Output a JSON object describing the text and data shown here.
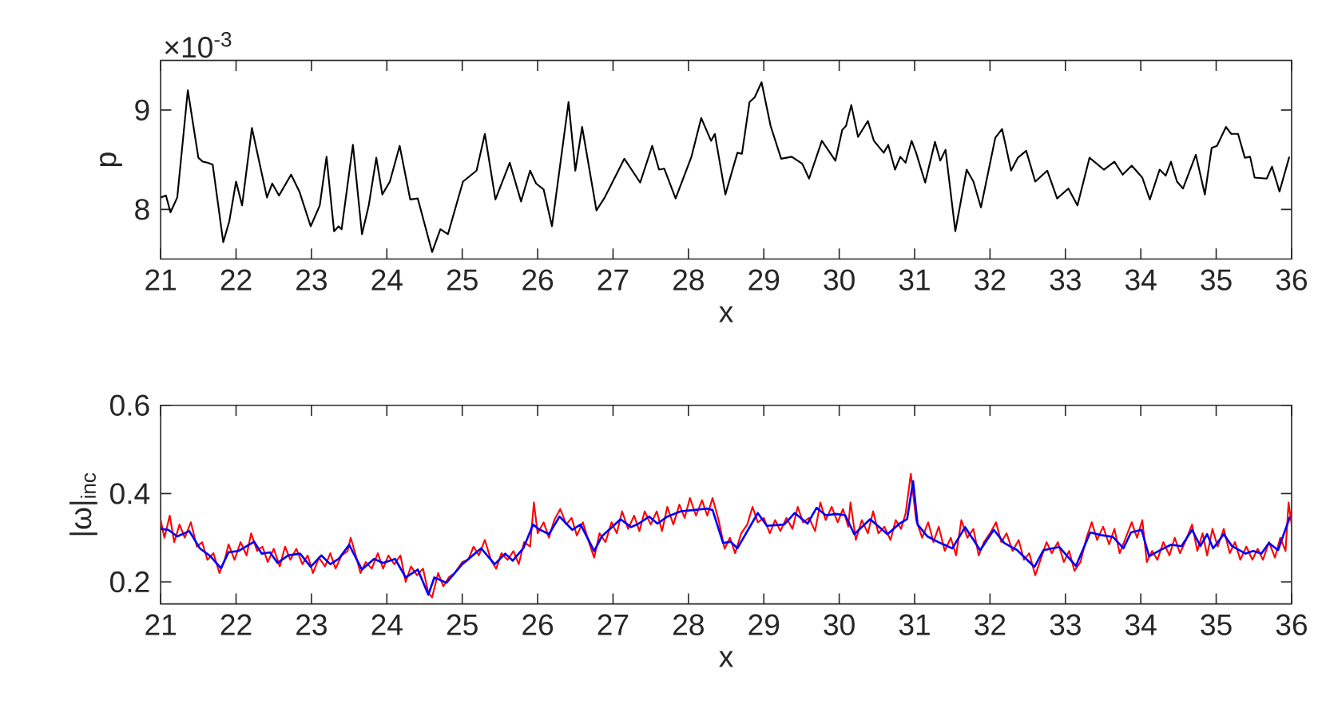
{
  "chart_data": [
    {
      "type": "line",
      "xlabel": "x",
      "ylabel": "p",
      "annotations": [
        "×10$^{-3}$"
      ],
      "xlim": [
        21,
        36
      ],
      "xticks": [
        21,
        22,
        23,
        24,
        25,
        26,
        27,
        28,
        29,
        30,
        31,
        32,
        33,
        34,
        35,
        36
      ],
      "ylim": [
        7.5,
        9.5
      ],
      "yticks": [
        8,
        9
      ],
      "series": [
        {
          "color": "#000000",
          "x": [
            21.0,
            21.07,
            21.13,
            21.22,
            21.36,
            21.5,
            21.56,
            21.62,
            21.69,
            21.83,
            21.91,
            22.0,
            22.08,
            22.21,
            22.41,
            22.48,
            22.57,
            22.73,
            22.84,
            22.99,
            23.11,
            23.2,
            23.3,
            23.36,
            23.4,
            23.55,
            23.67,
            23.76,
            23.86,
            23.94,
            24.04,
            24.17,
            24.31,
            24.41,
            24.6,
            24.71,
            24.81,
            25.01,
            25.19,
            25.3,
            25.44,
            25.63,
            25.78,
            25.9,
            25.98,
            26.08,
            26.19,
            26.41,
            26.5,
            26.59,
            26.78,
            26.89,
            27.15,
            27.36,
            27.52,
            27.61,
            27.68,
            27.83,
            28.04,
            28.17,
            28.3,
            28.35,
            28.49,
            28.65,
            28.71,
            28.81,
            28.88,
            28.97,
            29.09,
            29.23,
            29.37,
            29.51,
            29.6,
            29.77,
            29.95,
            30.04,
            30.09,
            30.16,
            30.25,
            30.38,
            30.46,
            30.59,
            30.65,
            30.74,
            30.81,
            30.88,
            30.96,
            31.02,
            31.14,
            31.27,
            31.34,
            31.41,
            31.54,
            31.69,
            31.78,
            31.88,
            32.07,
            32.16,
            32.28,
            32.37,
            32.48,
            32.6,
            32.76,
            32.89,
            33.04,
            33.16,
            33.32,
            33.51,
            33.65,
            33.76,
            33.88,
            34.02,
            34.12,
            34.25,
            34.33,
            34.4,
            34.48,
            34.56,
            34.73,
            34.85,
            34.94,
            35.01,
            35.13,
            35.2,
            35.29,
            35.38,
            35.45,
            35.51,
            35.67,
            35.74,
            35.84,
            35.97
          ],
          "values": [
            8.12,
            8.14,
            7.97,
            8.12,
            9.2,
            8.52,
            8.48,
            8.47,
            8.45,
            7.67,
            7.88,
            8.28,
            8.04,
            8.82,
            8.12,
            8.26,
            8.14,
            8.35,
            8.18,
            7.83,
            8.04,
            8.53,
            7.78,
            7.83,
            7.8,
            8.65,
            7.75,
            8.04,
            8.52,
            8.15,
            8.28,
            8.64,
            8.1,
            8.11,
            7.57,
            7.8,
            7.75,
            8.28,
            8.39,
            8.76,
            8.1,
            8.47,
            8.08,
            8.39,
            8.26,
            8.2,
            7.83,
            9.08,
            8.39,
            8.83,
            7.99,
            8.12,
            8.51,
            8.27,
            8.64,
            8.4,
            8.41,
            8.11,
            8.53,
            8.92,
            8.69,
            8.76,
            8.15,
            8.57,
            8.56,
            9.08,
            9.13,
            9.28,
            8.84,
            8.51,
            8.53,
            8.46,
            8.31,
            8.69,
            8.49,
            8.8,
            8.84,
            9.05,
            8.73,
            8.89,
            8.69,
            8.57,
            8.65,
            8.4,
            8.53,
            8.47,
            8.69,
            8.57,
            8.27,
            8.68,
            8.49,
            8.6,
            7.78,
            8.4,
            8.28,
            8.02,
            8.72,
            8.81,
            8.39,
            8.52,
            8.59,
            8.28,
            8.39,
            8.11,
            8.21,
            8.04,
            8.52,
            8.4,
            8.48,
            8.35,
            8.44,
            8.32,
            8.1,
            8.4,
            8.34,
            8.48,
            8.28,
            8.21,
            8.55,
            8.15,
            8.62,
            8.64,
            8.83,
            8.76,
            8.76,
            8.52,
            8.53,
            8.32,
            8.31,
            8.43,
            8.18,
            8.53
          ]
        }
      ]
    },
    {
      "type": "line",
      "xlabel": "x",
      "ylabel": "|ω|$_{inc}$",
      "xlim": [
        21,
        36
      ],
      "xticks": [
        21,
        22,
        23,
        24,
        25,
        26,
        27,
        28,
        29,
        30,
        31,
        32,
        33,
        34,
        35,
        36
      ],
      "ylim": [
        0.15,
        0.6
      ],
      "yticks": [
        0.2,
        0.4,
        0.6
      ],
      "series": [
        {
          "color": "#ff0000",
          "x": [
            21.0,
            21.05,
            21.12,
            21.18,
            21.25,
            21.32,
            21.4,
            21.48,
            21.55,
            21.62,
            21.7,
            21.78,
            21.85,
            21.9,
            21.98,
            22.06,
            22.14,
            22.2,
            22.28,
            22.35,
            22.42,
            22.5,
            22.58,
            22.65,
            22.72,
            22.8,
            22.88,
            22.95,
            23.02,
            23.1,
            23.18,
            23.25,
            23.32,
            23.4,
            23.48,
            23.52,
            23.58,
            23.65,
            23.72,
            23.8,
            23.88,
            23.95,
            24.02,
            24.1,
            24.18,
            24.25,
            24.32,
            24.4,
            24.48,
            24.55,
            24.6,
            24.68,
            24.75,
            24.82,
            24.9,
            25.0,
            25.08,
            25.15,
            25.22,
            25.3,
            25.38,
            25.45,
            25.52,
            25.6,
            25.68,
            25.75,
            25.82,
            25.9,
            25.95,
            26.0,
            26.08,
            26.15,
            26.22,
            26.3,
            26.38,
            26.45,
            26.52,
            26.6,
            26.68,
            26.75,
            26.82,
            26.9,
            26.98,
            27.05,
            27.12,
            27.2,
            27.28,
            27.35,
            27.42,
            27.5,
            27.58,
            27.65,
            27.72,
            27.8,
            27.88,
            27.95,
            28.02,
            28.1,
            28.18,
            28.25,
            28.32,
            28.4,
            28.48,
            28.55,
            28.62,
            28.7,
            28.78,
            28.85,
            28.92,
            29.0,
            29.08,
            29.15,
            29.22,
            29.3,
            29.38,
            29.45,
            29.52,
            29.6,
            29.68,
            29.75,
            29.82,
            29.9,
            29.98,
            30.05,
            30.12,
            30.15,
            30.22,
            30.3,
            30.38,
            30.45,
            30.52,
            30.6,
            30.68,
            30.75,
            30.82,
            30.88,
            30.95,
            31.02,
            31.1,
            31.18,
            31.25,
            31.32,
            31.4,
            31.48,
            31.55,
            31.62,
            31.7,
            31.78,
            31.85,
            31.92,
            32.0,
            32.08,
            32.15,
            32.22,
            32.3,
            32.38,
            32.45,
            32.52,
            32.6,
            32.68,
            32.75,
            32.82,
            32.9,
            32.98,
            33.05,
            33.12,
            33.2,
            33.28,
            33.35,
            33.42,
            33.5,
            33.58,
            33.65,
            33.72,
            33.8,
            33.88,
            33.95,
            34.02,
            34.08,
            34.15,
            34.22,
            34.3,
            34.38,
            34.45,
            34.52,
            34.6,
            34.68,
            34.75,
            34.82,
            34.88,
            34.95,
            35.02,
            35.1,
            35.18,
            35.25,
            35.32,
            35.4,
            35.48,
            35.55,
            35.62,
            35.7,
            35.78,
            35.85,
            35.92,
            35.96,
            36.0
          ],
          "values": [
            0.34,
            0.3,
            0.35,
            0.29,
            0.33,
            0.3,
            0.335,
            0.28,
            0.29,
            0.25,
            0.265,
            0.22,
            0.25,
            0.285,
            0.25,
            0.29,
            0.26,
            0.31,
            0.27,
            0.28,
            0.245,
            0.275,
            0.235,
            0.28,
            0.25,
            0.275,
            0.24,
            0.26,
            0.22,
            0.255,
            0.235,
            0.265,
            0.23,
            0.26,
            0.27,
            0.3,
            0.265,
            0.22,
            0.245,
            0.23,
            0.265,
            0.23,
            0.26,
            0.24,
            0.26,
            0.2,
            0.235,
            0.215,
            0.23,
            0.175,
            0.165,
            0.22,
            0.19,
            0.21,
            0.22,
            0.245,
            0.25,
            0.28,
            0.26,
            0.295,
            0.25,
            0.23,
            0.265,
            0.25,
            0.27,
            0.24,
            0.29,
            0.28,
            0.38,
            0.31,
            0.335,
            0.3,
            0.34,
            0.365,
            0.33,
            0.345,
            0.305,
            0.335,
            0.29,
            0.255,
            0.31,
            0.29,
            0.335,
            0.31,
            0.36,
            0.32,
            0.35,
            0.315,
            0.36,
            0.33,
            0.36,
            0.315,
            0.37,
            0.33,
            0.375,
            0.345,
            0.39,
            0.35,
            0.385,
            0.35,
            0.39,
            0.34,
            0.275,
            0.3,
            0.265,
            0.31,
            0.33,
            0.37,
            0.335,
            0.345,
            0.31,
            0.34,
            0.315,
            0.345,
            0.32,
            0.37,
            0.335,
            0.345,
            0.315,
            0.38,
            0.34,
            0.37,
            0.335,
            0.365,
            0.325,
            0.38,
            0.295,
            0.34,
            0.31,
            0.36,
            0.31,
            0.325,
            0.295,
            0.34,
            0.32,
            0.355,
            0.445,
            0.34,
            0.3,
            0.335,
            0.29,
            0.325,
            0.27,
            0.3,
            0.26,
            0.34,
            0.3,
            0.32,
            0.26,
            0.29,
            0.31,
            0.335,
            0.29,
            0.31,
            0.27,
            0.295,
            0.25,
            0.265,
            0.215,
            0.255,
            0.29,
            0.265,
            0.29,
            0.245,
            0.27,
            0.225,
            0.245,
            0.3,
            0.335,
            0.295,
            0.325,
            0.285,
            0.32,
            0.265,
            0.3,
            0.335,
            0.3,
            0.34,
            0.245,
            0.27,
            0.25,
            0.29,
            0.26,
            0.3,
            0.265,
            0.295,
            0.33,
            0.27,
            0.31,
            0.26,
            0.32,
            0.28,
            0.32,
            0.265,
            0.29,
            0.25,
            0.28,
            0.25,
            0.275,
            0.25,
            0.29,
            0.255,
            0.3,
            0.27,
            0.38,
            0.33
          ]
        },
        {
          "color": "#0000ff",
          "x": [
            21.0,
            21.1,
            21.22,
            21.38,
            21.52,
            21.66,
            21.8,
            21.9,
            22.03,
            22.24,
            22.34,
            22.45,
            22.55,
            22.69,
            22.85,
            22.99,
            23.13,
            23.25,
            23.36,
            23.5,
            23.67,
            23.83,
            23.95,
            24.11,
            24.25,
            24.41,
            24.55,
            24.63,
            24.79,
            25.0,
            25.25,
            25.43,
            25.57,
            25.67,
            25.81,
            25.94,
            26.01,
            26.15,
            26.29,
            26.46,
            26.57,
            26.75,
            26.85,
            27.1,
            27.24,
            27.34,
            27.48,
            27.59,
            27.72,
            27.9,
            28.08,
            28.25,
            28.32,
            28.46,
            28.56,
            28.65,
            28.92,
            29.04,
            29.27,
            29.41,
            29.58,
            29.7,
            29.82,
            29.96,
            30.08,
            30.2,
            30.41,
            30.64,
            30.8,
            30.9,
            30.98,
            31.04,
            31.17,
            31.34,
            31.5,
            31.67,
            31.87,
            32.05,
            32.19,
            32.36,
            32.59,
            32.71,
            32.92,
            33.14,
            33.33,
            33.47,
            33.63,
            33.77,
            33.87,
            34.01,
            34.11,
            34.26,
            34.4,
            34.54,
            34.68,
            34.79,
            34.88,
            34.96,
            35.1,
            35.21,
            35.39,
            35.49,
            35.6,
            35.7,
            35.82,
            35.98
          ],
          "values": [
            0.32,
            0.318,
            0.303,
            0.315,
            0.276,
            0.258,
            0.231,
            0.267,
            0.27,
            0.291,
            0.264,
            0.267,
            0.243,
            0.26,
            0.264,
            0.234,
            0.26,
            0.24,
            0.252,
            0.284,
            0.228,
            0.252,
            0.243,
            0.252,
            0.21,
            0.228,
            0.171,
            0.21,
            0.198,
            0.24,
            0.276,
            0.24,
            0.264,
            0.248,
            0.276,
            0.33,
            0.32,
            0.308,
            0.348,
            0.318,
            0.33,
            0.27,
            0.303,
            0.342,
            0.324,
            0.332,
            0.348,
            0.332,
            0.348,
            0.36,
            0.363,
            0.366,
            0.363,
            0.288,
            0.291,
            0.276,
            0.356,
            0.327,
            0.33,
            0.356,
            0.332,
            0.368,
            0.351,
            0.354,
            0.351,
            0.308,
            0.342,
            0.308,
            0.332,
            0.342,
            0.428,
            0.33,
            0.303,
            0.288,
            0.276,
            0.324,
            0.272,
            0.318,
            0.288,
            0.272,
            0.234,
            0.272,
            0.279,
            0.236,
            0.312,
            0.306,
            0.302,
            0.276,
            0.312,
            0.318,
            0.258,
            0.272,
            0.284,
            0.281,
            0.318,
            0.281,
            0.308,
            0.276,
            0.308,
            0.281,
            0.264,
            0.27,
            0.264,
            0.288,
            0.272,
            0.348
          ]
        }
      ]
    }
  ]
}
